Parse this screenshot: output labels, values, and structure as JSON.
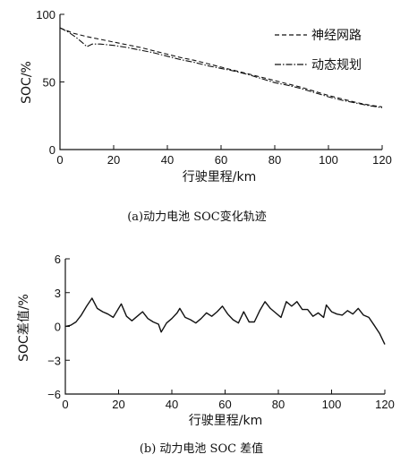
{
  "chart_data": [
    {
      "type": "line",
      "caption": "(a)动力电池 SOC变化轨迹",
      "xlabel": "行驶里程/km",
      "ylabel": "SOC/%",
      "xlim": [
        0,
        120
      ],
      "ylim": [
        0,
        100
      ],
      "xticks": [
        0,
        20,
        40,
        60,
        80,
        100,
        120
      ],
      "yticks": [
        0,
        50,
        100
      ],
      "grid": false,
      "legend_position": "top-right",
      "series": [
        {
          "name": "神经网路",
          "style": "dashed",
          "x": [
            0,
            5,
            10,
            15,
            20,
            25,
            30,
            35,
            40,
            45,
            50,
            55,
            60,
            65,
            70,
            75,
            80,
            85,
            90,
            95,
            100,
            105,
            110,
            115,
            120
          ],
          "values": [
            90,
            86,
            83.5,
            81.5,
            79.5,
            77.5,
            75.5,
            73,
            70.5,
            68,
            66,
            63.5,
            61,
            58.5,
            56,
            53.5,
            51,
            48.5,
            46,
            43,
            40,
            37.5,
            35,
            33,
            31.5
          ]
        },
        {
          "name": "动态规划",
          "style": "dashdot",
          "x": [
            0,
            3,
            6,
            9,
            10,
            12,
            15,
            20,
            25,
            30,
            35,
            40,
            45,
            50,
            55,
            60,
            65,
            70,
            75,
            80,
            85,
            90,
            95,
            100,
            105,
            110,
            115,
            120
          ],
          "values": [
            90,
            87,
            83,
            78,
            76,
            78,
            78,
            77,
            75.5,
            73.5,
            71.5,
            69,
            66.5,
            64.5,
            62,
            60,
            58,
            55.5,
            52.5,
            49.5,
            47.5,
            45,
            42,
            39,
            36.5,
            34.5,
            32.5,
            31
          ]
        }
      ]
    },
    {
      "type": "line",
      "caption": "(b) 动力电池 SOC 差值",
      "xlabel": "行驶里程/km",
      "ylabel": "SOC差值/%",
      "xlim": [
        0,
        120
      ],
      "ylim": [
        -6,
        6
      ],
      "xticks": [
        0,
        20,
        40,
        60,
        80,
        100,
        120
      ],
      "yticks": [
        -6,
        -3,
        0,
        3,
        6
      ],
      "grid": false,
      "series": [
        {
          "x": [
            0,
            2,
            4,
            6,
            8,
            10,
            12,
            14,
            16,
            18,
            20,
            21,
            23,
            25,
            27,
            29,
            31,
            33,
            35,
            36,
            38,
            40,
            42,
            43,
            45,
            47,
            49,
            51,
            53,
            55,
            57,
            59,
            61,
            63,
            65,
            67,
            69,
            71,
            73,
            75,
            77,
            79,
            81,
            83,
            85,
            87,
            89,
            91,
            93,
            95,
            97,
            98,
            100,
            102,
            104,
            106,
            108,
            110,
            112,
            114,
            116,
            118,
            120
          ],
          "values": [
            0,
            0.1,
            0.4,
            1.0,
            1.8,
            2.5,
            1.6,
            1.3,
            1.1,
            0.8,
            1.6,
            2.0,
            0.9,
            0.5,
            0.9,
            1.3,
            0.7,
            0.4,
            0.2,
            -0.5,
            0.3,
            0.7,
            1.2,
            1.6,
            0.8,
            0.6,
            0.3,
            0.7,
            1.2,
            0.9,
            1.3,
            1.8,
            1.1,
            0.6,
            0.3,
            1.3,
            0.4,
            0.4,
            1.4,
            2.2,
            1.6,
            1.2,
            0.8,
            2.2,
            1.8,
            2.2,
            1.5,
            1.5,
            0.9,
            1.2,
            0.8,
            1.9,
            1.3,
            1.1,
            1.0,
            1.4,
            1.1,
            1.6,
            1.0,
            0.8,
            0.1,
            -0.6,
            -1.6
          ]
        }
      ]
    }
  ]
}
